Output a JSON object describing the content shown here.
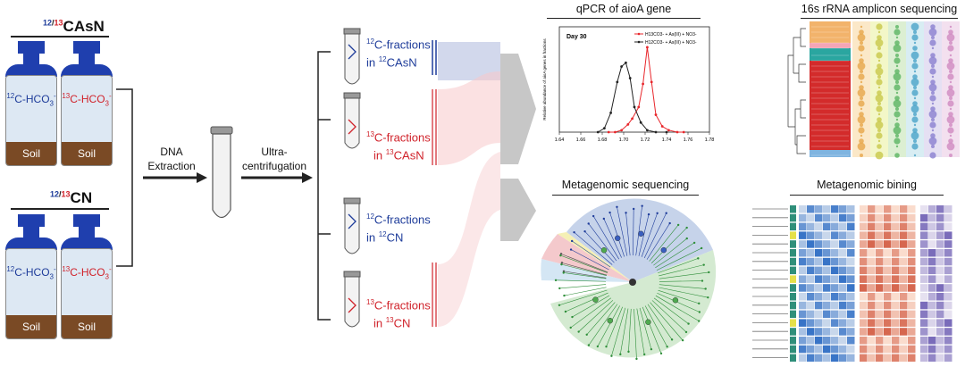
{
  "left": {
    "group1": {
      "prefix": "12/13",
      "suffix": "CAsN"
    },
    "group2": {
      "prefix": "12/13",
      "suffix": "CN"
    },
    "bottle_labels": {
      "c12": "12C-HCO3-",
      "c13": "13C-HCO3-",
      "soil": "Soil"
    },
    "label_parts": {
      "mass12": "12",
      "mass13": "13",
      "base": "C-HCO",
      "sub": "3",
      "sup": "-"
    }
  },
  "steps": {
    "dna": "DNA",
    "extraction": "Extraction",
    "ultra1": "Ultra-",
    "ultra2": "centrifugation"
  },
  "fractions": [
    {
      "mass": "12",
      "line1": "C-fractions",
      "line2_pre": "in ",
      "line2_mass": "12",
      "line2": "CAsN",
      "color": "#1e3c9a"
    },
    {
      "mass": "13",
      "line1": "C-fractions",
      "line2_pre": "in ",
      "line2_mass": "13",
      "line2": "CAsN",
      "color": "#d0222a"
    },
    {
      "mass": "12",
      "line1": "C-fractions",
      "line2_pre": "in ",
      "line2_mass": "12",
      "line2": "CN",
      "color": "#1e3c9a"
    },
    {
      "mass": "13",
      "line1": "C-fractions",
      "line2_pre": "in ",
      "line2_mass": "13",
      "line2": "CN",
      "color": "#d0222a"
    }
  ],
  "panels": {
    "qpcr_title": "qPCR of aioA gene",
    "amplicon_title": "16s rRNA amplicon sequencing",
    "metagenomic_title": "Metagenomic sequencing",
    "binning_title": "Metagenomic bining"
  },
  "qpcr": {
    "chart_data": {
      "type": "line",
      "title": "qPCR of aioA gene",
      "annotation": "Day 30",
      "ylabel": "Relative abundance of aioA genes in fractions",
      "xlabel": "",
      "x_ticks": [
        "1.64",
        "1.66",
        "1.68",
        "1.70",
        "1.72",
        "1.74",
        "1.76",
        "1.78"
      ],
      "xlim": [
        1.64,
        1.78
      ],
      "ylim": [
        0,
        0.5
      ],
      "series": [
        {
          "name": "H13CO3- + As(III) + NO3-",
          "color": "#e8262b",
          "x": [
            1.686,
            1.692,
            1.698,
            1.704,
            1.708,
            1.714,
            1.718,
            1.722,
            1.726,
            1.73,
            1.736,
            1.742,
            1.75,
            1.756
          ],
          "values": [
            0.0,
            0.0,
            0.01,
            0.04,
            0.07,
            0.13,
            0.25,
            0.44,
            0.26,
            0.09,
            0.03,
            0.01,
            0.0,
            0.0
          ]
        },
        {
          "name": "H12CO3- + As(III) + NO3-",
          "color": "#222222",
          "x": [
            1.676,
            1.682,
            1.688,
            1.694,
            1.698,
            1.702,
            1.706,
            1.71,
            1.716,
            1.722,
            1.73,
            1.74
          ],
          "values": [
            0.0,
            0.02,
            0.1,
            0.26,
            0.34,
            0.36,
            0.28,
            0.13,
            0.05,
            0.01,
            0.0,
            0.0
          ]
        }
      ]
    }
  },
  "colors": {
    "blue": "#1e3c9a",
    "red": "#d0222a",
    "soil": "#7a4a25",
    "cap": "#1f3fae",
    "bottle_fill": "#dde8f3"
  }
}
